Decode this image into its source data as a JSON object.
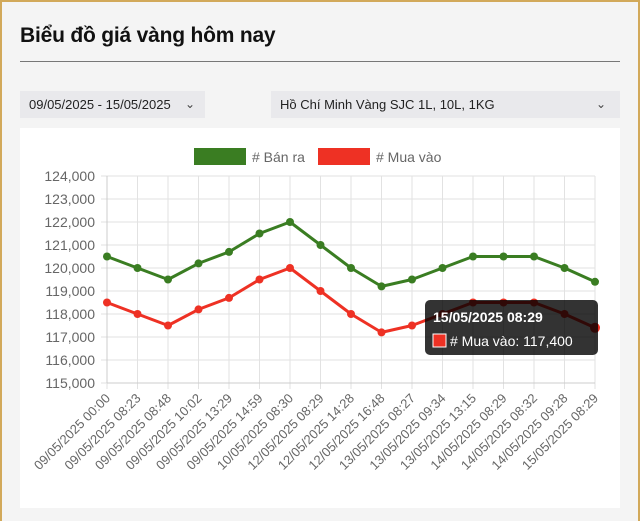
{
  "header": {
    "title": "Biểu đồ giá vàng hôm nay"
  },
  "filters": {
    "date_range": "09/05/2025 - 15/05/2025",
    "product": "Hồ Chí Minh Vàng SJC 1L, 10L, 1KG",
    "chevron_icon": "chevron-down-icon"
  },
  "tooltip": {
    "title": "15/05/2025 08:29",
    "label": "# Mua vào: 117,400",
    "swatch_color": "#ee3124"
  },
  "chart_data": {
    "type": "line",
    "title": "",
    "xlabel": "",
    "ylabel": "",
    "ylim": [
      115000,
      124000
    ],
    "yticks": [
      124000,
      123000,
      122000,
      121000,
      120000,
      119000,
      118000,
      117000,
      116000,
      115000
    ],
    "ytick_labels": [
      "124,000",
      "123,000",
      "122,000",
      "121,000",
      "120,000",
      "119,000",
      "118,000",
      "117,000",
      "116,000",
      "115,000"
    ],
    "grid": true,
    "legend_position": "top",
    "categories": [
      "09/05/2025 00:00",
      "09/05/2025 08:23",
      "09/05/2025 08:48",
      "09/05/2025 10:02",
      "09/05/2025 13:29",
      "09/05/2025 14:59",
      "10/05/2025 08:30",
      "12/05/2025 08:29",
      "12/05/2025 14:28",
      "12/05/2025 16:48",
      "13/05/2025 08:27",
      "13/05/2025 09:34",
      "13/05/2025 13:15",
      "14/05/2025 08:29",
      "14/05/2025 08:32",
      "14/05/2025 09:28",
      "15/05/2025 08:29"
    ],
    "series": [
      {
        "name": "# Bán ra",
        "color": "#3a7d22",
        "values": [
          120500,
          120000,
          119500,
          120200,
          120700,
          121500,
          122000,
          121000,
          120000,
          119200,
          119500,
          120000,
          120500,
          120500,
          120500,
          120000,
          119400
        ]
      },
      {
        "name": "# Mua vào",
        "color": "#ee3124",
        "values": [
          118500,
          118000,
          117500,
          118200,
          118700,
          119500,
          120000,
          119000,
          118000,
          117200,
          117500,
          118000,
          118500,
          118500,
          118500,
          118000,
          117400
        ]
      }
    ]
  }
}
